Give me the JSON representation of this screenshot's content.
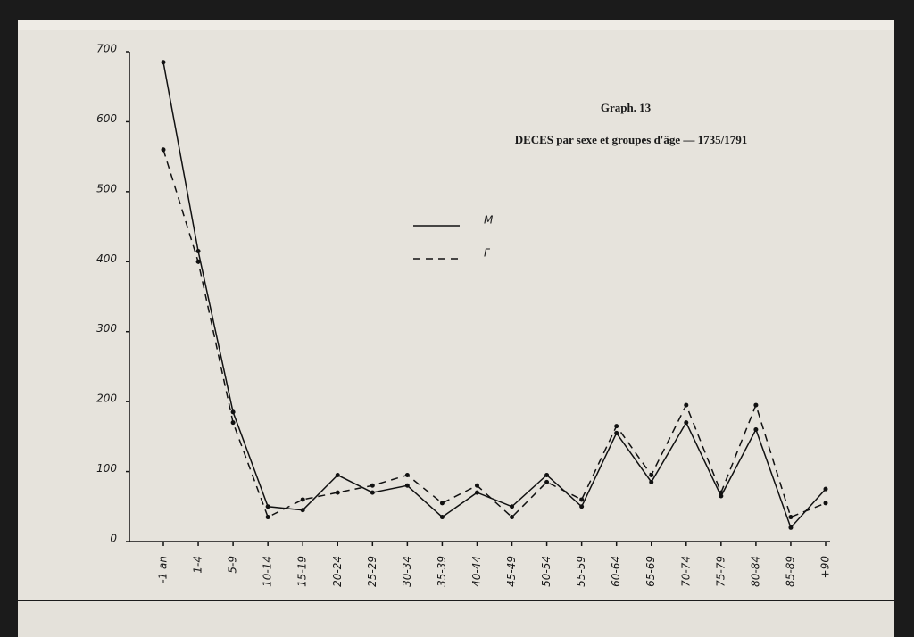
{
  "chart_data": {
    "type": "line",
    "title": "Graph. 13",
    "subtitle": "DECES par sexe et groupes d'âge — 1735/1791",
    "categories": [
      "-1 an",
      "1-4",
      "5-9",
      "10-14",
      "15-19",
      "20-24",
      "25-29",
      "30-34",
      "35-39",
      "40-44",
      "45-49",
      "50-54",
      "55-59",
      "60-64",
      "65-69",
      "70-74",
      "75-79",
      "80-84",
      "85-89",
      "+90"
    ],
    "series": [
      {
        "name": "M",
        "color": "#111111",
        "style": "solid",
        "values": [
          685,
          415,
          185,
          50,
          45,
          95,
          70,
          80,
          35,
          70,
          50,
          95,
          50,
          155,
          85,
          170,
          65,
          160,
          20,
          75
        ]
      },
      {
        "name": "F",
        "color": "#111111",
        "style": "dashed",
        "values": [
          560,
          400,
          170,
          35,
          60,
          70,
          80,
          95,
          55,
          80,
          35,
          85,
          60,
          165,
          95,
          195,
          70,
          195,
          35,
          55
        ]
      }
    ],
    "ylim": [
      0,
      700
    ],
    "yticks": [
      0,
      100,
      200,
      300,
      400,
      500,
      600,
      700
    ]
  }
}
